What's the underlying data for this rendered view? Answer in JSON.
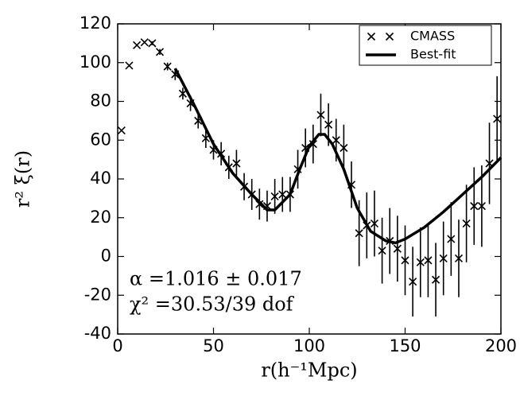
{
  "chart_data": {
    "type": "scatter",
    "xlabel": "r(h⁻¹Mpc)",
    "ylabel": "r² ξ(r)",
    "annotations": [
      "α =1.016 ± 0.017",
      "χ² =30.53/39  dof"
    ],
    "xlim": [
      0,
      200
    ],
    "ylim": [
      -40,
      120
    ],
    "xticks": [
      0,
      50,
      100,
      150,
      200
    ],
    "yticks": [
      -40,
      -20,
      0,
      20,
      40,
      60,
      80,
      100,
      120
    ],
    "legend": "upper right",
    "series": [
      {
        "name": "CMASS",
        "type": "errorbar",
        "color": "#000000",
        "x": [
          2,
          6,
          10,
          14,
          18,
          22,
          26,
          30,
          34,
          38,
          42,
          46,
          50,
          54,
          58,
          62,
          66,
          70,
          74,
          78,
          82,
          86,
          90,
          94,
          98,
          102,
          106,
          110,
          114,
          118,
          122,
          126,
          130,
          134,
          138,
          142,
          146,
          150,
          154,
          158,
          162,
          166,
          170,
          174,
          178,
          182,
          186,
          190,
          194,
          198
        ],
        "values": [
          65,
          98.5,
          109,
          110.5,
          110,
          105.5,
          98,
          94,
          84,
          79,
          70,
          61,
          55,
          53,
          46,
          48,
          36,
          32,
          27,
          26,
          31,
          32,
          32,
          45,
          56,
          58,
          73,
          68,
          60,
          56,
          37,
          12,
          16,
          17,
          3,
          8,
          4,
          -2,
          -13,
          -3,
          -2,
          -12,
          -1,
          9,
          -1,
          17,
          26,
          26,
          48,
          71
        ],
        "errors": [
          0.5,
          0.5,
          0.5,
          0.5,
          1,
          1.5,
          2,
          3,
          3,
          4,
          4,
          5,
          5,
          6,
          6,
          7,
          7,
          8,
          8,
          8,
          9,
          9,
          9,
          10,
          10,
          10,
          11,
          11,
          11,
          12,
          12,
          17,
          17,
          17,
          17,
          17,
          17,
          18,
          18,
          18,
          19,
          19,
          19,
          19,
          20,
          20,
          20,
          21,
          21,
          22
        ]
      },
      {
        "name": "Best-fit",
        "type": "line",
        "color": "#000000",
        "x": [
          30,
          40,
          50,
          60,
          70,
          78,
          82,
          90,
          95,
          100,
          105,
          108,
          112,
          118,
          125,
          132,
          140,
          145,
          150,
          160,
          170,
          180,
          190,
          200
        ],
        "values": [
          97,
          78,
          58,
          43,
          32,
          24,
          24,
          32,
          45,
          57,
          63,
          63,
          58,
          45,
          25,
          13,
          8,
          7,
          9,
          15,
          23,
          32,
          41,
          51
        ]
      }
    ]
  }
}
